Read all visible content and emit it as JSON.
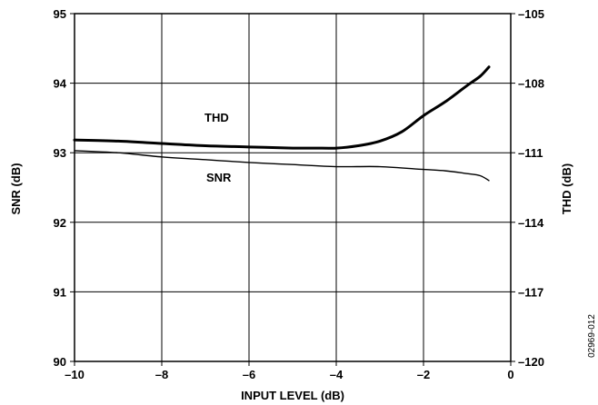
{
  "chart_data": {
    "type": "line",
    "xlabel": "INPUT LEVEL (dB)",
    "ylabel_left": "SNR (dB)",
    "ylabel_right": "THD (dB)",
    "xlim": [
      -10,
      0
    ],
    "ylim_left": [
      90,
      95
    ],
    "ylim_right": [
      -120,
      -105
    ],
    "x_ticks": [
      -10,
      -8,
      -6,
      -4,
      -2,
      0
    ],
    "x_tick_labels": [
      "–10",
      "–8",
      "–6",
      "–4",
      "–2",
      "0"
    ],
    "y_left_ticks": [
      90,
      91,
      92,
      93,
      94,
      95
    ],
    "y_left_tick_labels": [
      "90",
      "91",
      "92",
      "93",
      "94",
      "95"
    ],
    "y_right_ticks": [
      -120,
      -117,
      -114,
      -111,
      -108,
      -105
    ],
    "y_right_tick_labels": [
      "–120",
      "–117",
      "–114",
      "–111",
      "–108",
      "–105"
    ],
    "grid": true,
    "figure_id": "02969-012",
    "series": [
      {
        "name": "THD",
        "axis": "right",
        "x": [
          -10,
          -9,
          -8,
          -7,
          -6,
          -5,
          -4.5,
          -4,
          -3.5,
          -3,
          -2.5,
          -2,
          -1.5,
          -1,
          -0.7,
          -0.5
        ],
        "values": [
          -110.45,
          -110.5,
          -110.6,
          -110.7,
          -110.75,
          -110.8,
          -110.8,
          -110.8,
          -110.7,
          -110.5,
          -110.1,
          -109.4,
          -108.8,
          -108.1,
          -107.7,
          -107.3
        ]
      },
      {
        "name": "SNR",
        "axis": "left",
        "x": [
          -10,
          -9,
          -8,
          -7,
          -6,
          -5,
          -4,
          -3,
          -2,
          -1.5,
          -1,
          -0.7,
          -0.5
        ],
        "values": [
          93.03,
          93.0,
          92.94,
          92.9,
          92.86,
          92.83,
          92.8,
          92.8,
          92.76,
          92.74,
          92.7,
          92.67,
          92.6
        ]
      }
    ]
  }
}
